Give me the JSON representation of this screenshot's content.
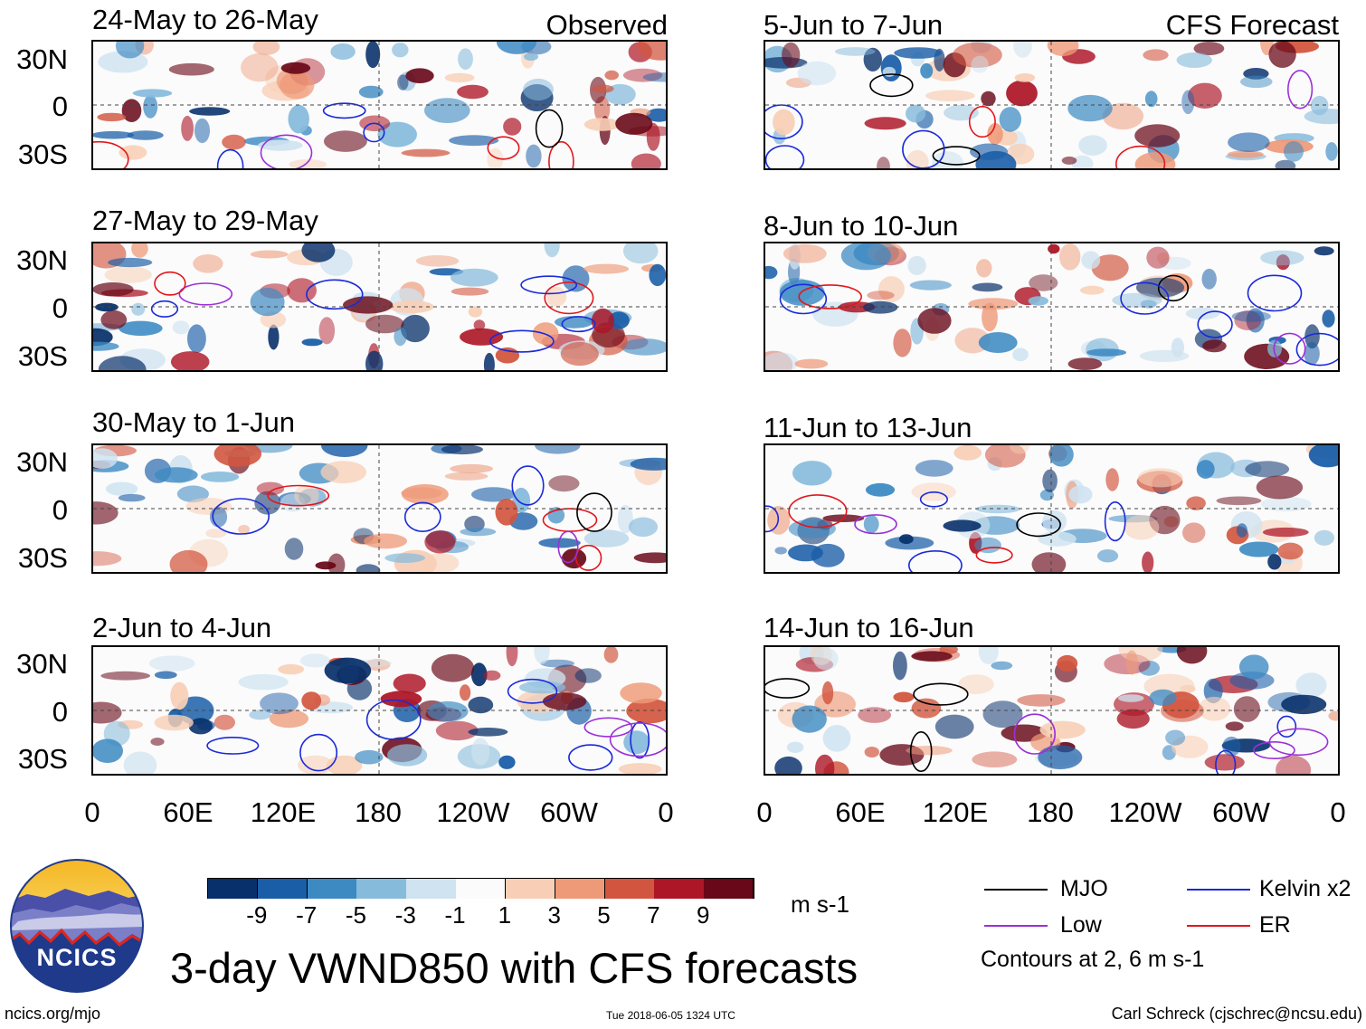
{
  "left_header": "Observed",
  "right_header": "CFS Forecast",
  "observed_panels": [
    {
      "title": "24-May to 26-May"
    },
    {
      "title": "27-May to 29-May"
    },
    {
      "title": "30-May to 1-Jun"
    },
    {
      "title": "2-Jun to 4-Jun"
    }
  ],
  "forecast_panels": [
    {
      "title": "5-Jun to 7-Jun"
    },
    {
      "title": "8-Jun to 10-Jun"
    },
    {
      "title": "11-Jun to 13-Jun"
    },
    {
      "title": "14-Jun to 16-Jun"
    }
  ],
  "lat_labels": [
    "30N",
    "0",
    "30S"
  ],
  "lon_labels": [
    "0",
    "60E",
    "120E",
    "180",
    "120W",
    "60W",
    "0"
  ],
  "colorbar": {
    "colors": [
      "#08306b",
      "#1a5ea8",
      "#3d8ac3",
      "#87bbdc",
      "#cfe3f0",
      "#fbfbfb",
      "#f8cfb6",
      "#ee9a78",
      "#d2563f",
      "#ad1626",
      "#680818"
    ],
    "ticks": [
      "-9",
      "-7",
      "-5",
      "-3",
      "-1",
      "1",
      "3",
      "5",
      "7",
      "9"
    ],
    "units": "m s-1"
  },
  "legend": {
    "items": [
      {
        "label": "MJO",
        "color": "#000000"
      },
      {
        "label": "Kelvin x2",
        "color": "#1a2adb"
      },
      {
        "label": "Low",
        "color": "#9b30d9"
      },
      {
        "label": "ER",
        "color": "#e2161b"
      }
    ],
    "note": "Contours at 2, 6 m s-1"
  },
  "logo_text": "NCICS",
  "title": "3-day VWND850 with CFS forecasts",
  "footer": {
    "url": "ncics.org/mjo",
    "timestamp": "Tue 2018-06-05 1324 UTC",
    "credit": "Carl Schreck (cjschrec@ncsu.edu)"
  }
}
